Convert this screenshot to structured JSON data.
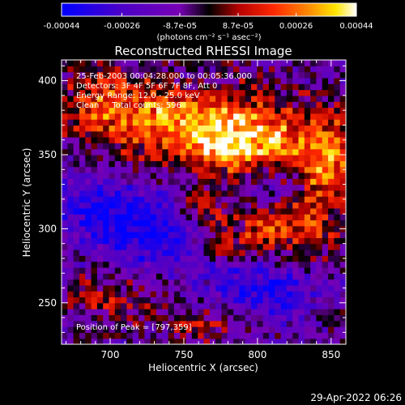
{
  "title": "Reconstructed RHESSI Image",
  "timestamp": "29-Apr-2022 06:26",
  "colorbar": {
    "tick_labels": [
      "-0.00044",
      "-0.00026",
      "-8.7e-05",
      "8.7e-05",
      "0.00026",
      "0.00044"
    ],
    "tick_values": [
      -0.00044,
      -0.00026,
      -8.7e-05,
      8.7e-05,
      0.00026,
      0.00044
    ],
    "range": [
      -0.00044,
      0.00044
    ],
    "unit_label": "(photons cm⁻² s⁻¹ asec⁻²)",
    "colors": [
      "#0000ff",
      "#4b00c8",
      "#7800b4",
      "#000000",
      "#b40000",
      "#ff2800",
      "#ff8c00",
      "#ffe600",
      "#ffffff"
    ]
  },
  "annotations": {
    "time_range": "25-Feb-2003 00:04:28.000 to 00:05:36.000",
    "detectors": "Detectors: 3F 4F 5F 6F 7F 8F, Att 0",
    "energy": "Energy Range: 12.0 - 25.0 keV",
    "clean": "Clean     Total counts: 596",
    "peak": "Position of Peak = [797,359]"
  },
  "chart_data": {
    "type": "heatmap",
    "title": "Reconstructed RHESSI Image",
    "xlabel": "Heliocentric X (arcsec)",
    "ylabel": "Heliocentric Y (arcsec)",
    "xlim": [
      667,
      860
    ],
    "ylim": [
      222,
      414
    ],
    "x_ticks": [
      700,
      750,
      800,
      850
    ],
    "y_ticks": [
      250,
      300,
      350,
      400
    ],
    "x_tick_labels": [
      "700",
      "750",
      "800",
      "850"
    ],
    "y_tick_labels": [
      "250",
      "300",
      "350",
      "400"
    ],
    "value_range": [
      -0.00044,
      0.00044
    ],
    "peak_position": [
      797,
      359
    ],
    "grid_size": [
      48,
      48
    ],
    "bright_regions": [
      {
        "x": 795,
        "y": 360,
        "sx": 30,
        "sy": 18,
        "amp": 0.00044
      },
      {
        "x": 740,
        "y": 375,
        "sx": 35,
        "sy": 22,
        "amp": 0.00034
      },
      {
        "x": 848,
        "y": 345,
        "sx": 12,
        "sy": 22,
        "amp": 0.00036
      },
      {
        "x": 815,
        "y": 300,
        "sx": 28,
        "sy": 14,
        "amp": 0.0003
      },
      {
        "x": 760,
        "y": 315,
        "sx": 14,
        "sy": 8,
        "amp": 0.0003
      },
      {
        "x": 775,
        "y": 290,
        "sx": 12,
        "sy": 10,
        "amp": 0.00022
      },
      {
        "x": 690,
        "y": 385,
        "sx": 16,
        "sy": 20,
        "amp": 0.0002
      },
      {
        "x": 700,
        "y": 255,
        "sx": 22,
        "sy": 12,
        "amp": 0.00018
      },
      {
        "x": 760,
        "y": 235,
        "sx": 18,
        "sy": 10,
        "amp": 0.00016
      },
      {
        "x": 845,
        "y": 250,
        "sx": 16,
        "sy": 12,
        "amp": 0.00014
      }
    ],
    "dim_regions": [
      {
        "x": 735,
        "y": 300,
        "sx": 32,
        "sy": 20,
        "amp": -0.0003
      },
      {
        "x": 690,
        "y": 315,
        "sx": 20,
        "sy": 14,
        "amp": -0.00022
      },
      {
        "x": 830,
        "y": 255,
        "sx": 22,
        "sy": 14,
        "amp": -0.00024
      },
      {
        "x": 790,
        "y": 265,
        "sx": 18,
        "sy": 12,
        "amp": -0.00022
      },
      {
        "x": 805,
        "y": 330,
        "sx": 14,
        "sy": 10,
        "amp": -0.00016
      },
      {
        "x": 760,
        "y": 400,
        "sx": 14,
        "sy": 10,
        "amp": -0.00014
      }
    ]
  }
}
